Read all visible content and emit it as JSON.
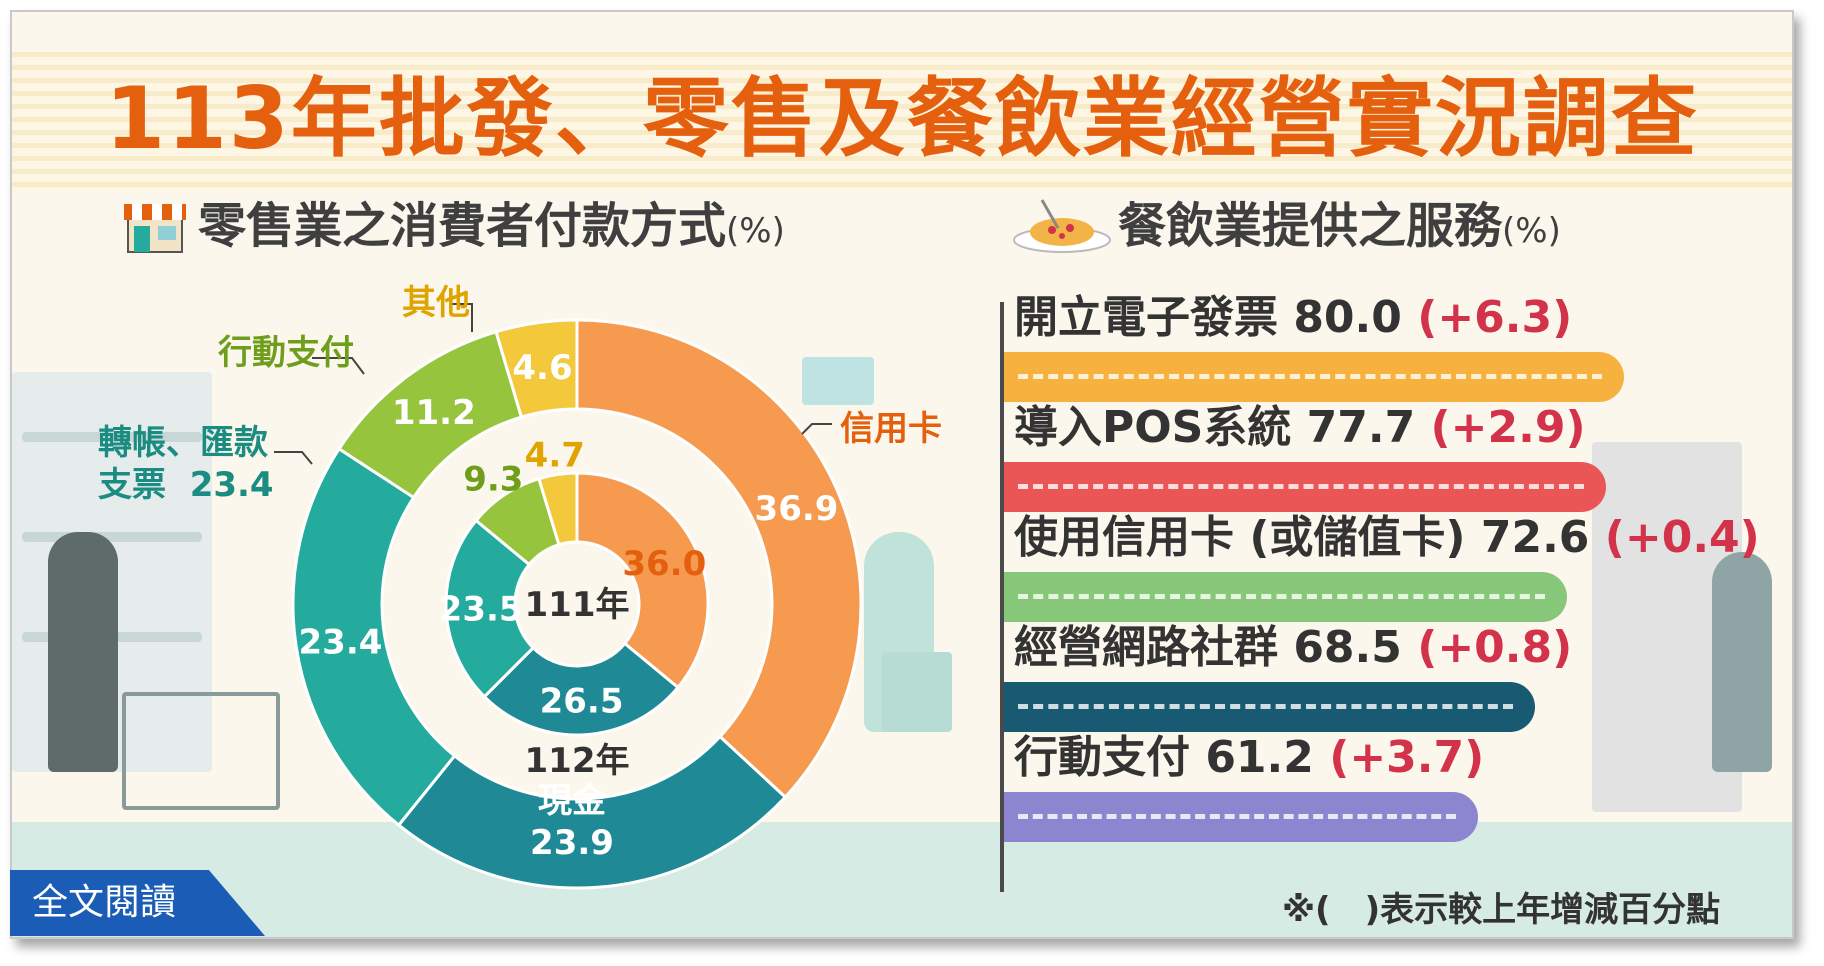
{
  "title": "113年批發、零售及餐飲業經營實況調查",
  "left_subtitle": {
    "text": "零售業之消費者付款方式",
    "unit": "(%)",
    "icon": "store-icon"
  },
  "right_subtitle": {
    "text": "餐飲業提供之服務",
    "unit": "(%)",
    "icon": "pasta-plate-icon"
  },
  "donut_center_inner": "111年",
  "donut_center_outer": "112年",
  "side_labels": {
    "credit": "信用卡",
    "cash": "現金",
    "cash_value": "23.9",
    "transfer": "轉帳、匯款",
    "transfer_line2": "支票",
    "transfer_value": "23.4",
    "mobile": "行動支付",
    "other": "其他"
  },
  "note": "※(　)表示較上年增減百分點",
  "read_more": "全文閱讀",
  "colors": {
    "title": "#e4600f",
    "credit": "#f59a4e",
    "cash": "#1f8a96",
    "transfer": "#24ab9e",
    "mobile": "#96c43c",
    "other": "#f3c83a",
    "change": "#d2334a"
  },
  "chart_data": [
    {
      "type": "pie",
      "variant": "nested-donut",
      "unit": "%",
      "rings": [
        {
          "name": "112年",
          "position": "outer",
          "slices": [
            {
              "label": "信用卡",
              "value": 36.9
            },
            {
              "label": "現金",
              "value": 23.9
            },
            {
              "label": "轉帳、匯款支票",
              "value": 23.4
            },
            {
              "label": "行動支付",
              "value": 11.2
            },
            {
              "label": "其他",
              "value": 4.6
            }
          ]
        },
        {
          "name": "111年",
          "position": "inner",
          "slices": [
            {
              "label": "信用卡",
              "value": 36.0
            },
            {
              "label": "現金",
              "value": 26.5
            },
            {
              "label": "轉帳、匯款支票",
              "value": 23.5
            },
            {
              "label": "行動支付",
              "value": 9.3
            },
            {
              "label": "其他",
              "value": 4.7
            }
          ]
        }
      ]
    },
    {
      "type": "bar",
      "orientation": "horizontal",
      "unit": "%",
      "categories": [
        "開立電子發票",
        "導入POS系統",
        "使用信用卡 (或儲值卡)",
        "經營網路社群",
        "行動支付"
      ],
      "values": [
        80.0,
        77.7,
        72.6,
        68.5,
        61.2
      ],
      "changes": [
        "+6.3",
        "+2.9",
        "+0.4",
        "+0.8",
        "+3.7"
      ],
      "colors": [
        "#f7b13e",
        "#ea5555",
        "#86c77a",
        "#175a72",
        "#8b86cf"
      ]
    }
  ]
}
